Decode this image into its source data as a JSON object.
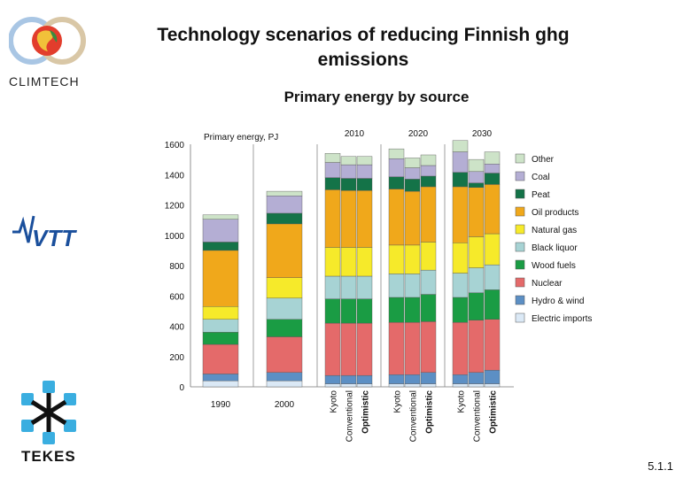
{
  "page": {
    "title_line1": "Technology scenarios of reducing Finnish ghg",
    "title_line2": "emissions",
    "subtitle": "Primary energy by source",
    "page_number": "5.1.1"
  },
  "logos": {
    "climtech": "CLIMTECH",
    "vtt": "VTT",
    "tekes": "TEKES"
  },
  "colors": {
    "Other": "#cde3c8",
    "Coal": "#b4aed4",
    "Peat": "#147348",
    "Oil products": "#f0a81b",
    "Natural gas": "#f6ea2a",
    "Black liquor": "#a7d3d4",
    "Wood fuels": "#1a9c44",
    "Nuclear": "#e46a6a",
    "Hydro & wind": "#5c8fc4",
    "Electric imports": "#dbe9f6"
  },
  "chart_data": {
    "type": "bar",
    "stacked": true,
    "ylabel": "Primary energy, PJ",
    "ylim": [
      0,
      1600
    ],
    "yticks": [
      0,
      200,
      400,
      600,
      800,
      1000,
      1200,
      1400,
      1600
    ],
    "groups": [
      "2010",
      "2020",
      "2030"
    ],
    "categories": [
      "1990",
      "2000",
      "Kyoto",
      "Conventional",
      "Optimistic",
      "Kyoto",
      "Conventional",
      "Optimistic",
      "Kyoto",
      "Conventional",
      "Optimistic"
    ],
    "legend": [
      "Other",
      "Coal",
      "Peat",
      "Oil products",
      "Natural gas",
      "Black liquor",
      "Wood fuels",
      "Nuclear",
      "Hydro & wind",
      "Electric imports"
    ],
    "series": [
      {
        "name": "Electric imports",
        "values": [
          40,
          40,
          20,
          20,
          20,
          20,
          20,
          20,
          20,
          20,
          20
        ]
      },
      {
        "name": "Hydro & wind",
        "values": [
          45,
          55,
          55,
          55,
          55,
          60,
          60,
          75,
          60,
          75,
          90
        ]
      },
      {
        "name": "Nuclear",
        "values": [
          195,
          235,
          345,
          345,
          345,
          345,
          345,
          335,
          345,
          345,
          335
        ]
      },
      {
        "name": "Wood fuels",
        "values": [
          80,
          115,
          160,
          160,
          160,
          165,
          165,
          180,
          165,
          180,
          195
        ]
      },
      {
        "name": "Black liquor",
        "values": [
          85,
          140,
          150,
          150,
          150,
          155,
          155,
          160,
          160,
          165,
          165
        ]
      },
      {
        "name": "Natural gas",
        "values": [
          85,
          135,
          190,
          190,
          190,
          190,
          190,
          185,
          200,
          205,
          205
        ]
      },
      {
        "name": "Oil products",
        "values": [
          370,
          355,
          380,
          375,
          375,
          370,
          355,
          365,
          370,
          325,
          325
        ]
      },
      {
        "name": "Peat",
        "values": [
          55,
          70,
          80,
          80,
          80,
          80,
          80,
          70,
          95,
          30,
          75
        ]
      },
      {
        "name": "Coal",
        "values": [
          150,
          115,
          100,
          90,
          90,
          120,
          75,
          70,
          135,
          75,
          60
        ]
      },
      {
        "name": "Other",
        "values": [
          30,
          30,
          60,
          55,
          55,
          65,
          65,
          70,
          75,
          80,
          80
        ]
      }
    ]
  }
}
